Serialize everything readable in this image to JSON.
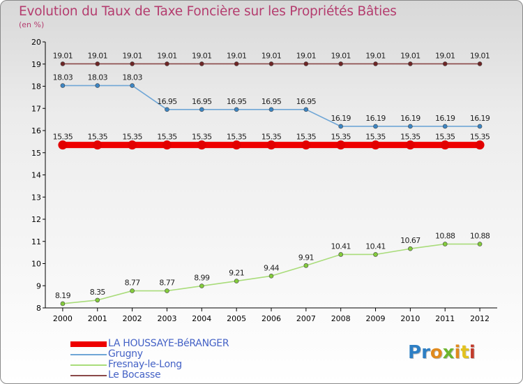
{
  "chart_data": {
    "type": "line",
    "title": "Evolution du Taux de Taxe Foncière sur les Propriétés Bâties",
    "subtitle": "(en %)",
    "x": [
      "2000",
      "2001",
      "2002",
      "2003",
      "2004",
      "2005",
      "2006",
      "2007",
      "2008",
      "2009",
      "2010",
      "2011",
      "2012"
    ],
    "ylim": [
      8,
      20
    ],
    "yticks": [
      8,
      9,
      10,
      11,
      12,
      13,
      14,
      15,
      16,
      17,
      18,
      19,
      20
    ],
    "series": [
      {
        "name": "LA HOUSSAYE-BéRANGER",
        "color": "#ee0000",
        "thick": true,
        "values": [
          15.35,
          15.35,
          15.35,
          15.35,
          15.35,
          15.35,
          15.35,
          15.35,
          15.35,
          15.35,
          15.35,
          15.35,
          15.35
        ]
      },
      {
        "name": "Grugny",
        "color": "#6fa6d6",
        "point": "#3d86c4",
        "thick": false,
        "values": [
          18.03,
          18.03,
          18.03,
          16.95,
          16.95,
          16.95,
          16.95,
          16.95,
          16.19,
          16.19,
          16.19,
          16.19,
          16.19
        ]
      },
      {
        "name": "Fresnay-le-Long",
        "color": "#a9dc7a",
        "point": "#84cc3c",
        "thick": false,
        "values": [
          8.19,
          8.35,
          8.77,
          8.77,
          8.99,
          9.21,
          9.44,
          9.91,
          10.41,
          10.41,
          10.67,
          10.88,
          10.88
        ]
      },
      {
        "name": "Le Bocasse",
        "color": "#8a4848",
        "point": "#6e2525",
        "thick": false,
        "values": [
          19.01,
          19.01,
          19.01,
          19.01,
          19.01,
          19.01,
          19.01,
          19.01,
          19.01,
          19.01,
          19.01,
          19.01,
          19.01
        ]
      }
    ],
    "legend_position": "bottom-left"
  },
  "data_labels": {
    "LA HOUSSAYE-BéRANGER": [
      "15.35",
      "15.35",
      "15.35",
      "15.35",
      "15.35",
      "15.35",
      "15.35",
      "15.35",
      "15.35",
      "15.35",
      "15.35",
      "15.35",
      "15.35"
    ],
    "Grugny": [
      "18.03",
      "18.03",
      "18.03",
      "16.95",
      "16.95",
      "16.95",
      "16.95",
      "16.95",
      "16.19",
      "16.19",
      "16.19",
      "16.19",
      "16.19"
    ],
    "Fresnay-le-Long": [
      "8.19",
      "8.35",
      "8.77",
      "8.77",
      "8.99",
      "9.21",
      "9.44",
      "9.91",
      "10.41",
      "10.41",
      "10.67",
      "10.88",
      "10.88"
    ],
    "Le Bocasse": [
      "19.01",
      "19.01",
      "19.01",
      "19.01",
      "19.01",
      "19.01",
      "19.01",
      "19.01",
      "19.01",
      "19.01",
      "19.01",
      "19.01",
      "19.01"
    ]
  },
  "logo": {
    "letters": [
      "P",
      "r",
      "o",
      "x",
      "i",
      "t",
      "i"
    ],
    "colors": [
      "#2e7fc4",
      "#2e7fc4",
      "#e08a1e",
      "#6cb52f",
      "#e08a1e",
      "#e3c21f",
      "#c23b2b"
    ]
  }
}
